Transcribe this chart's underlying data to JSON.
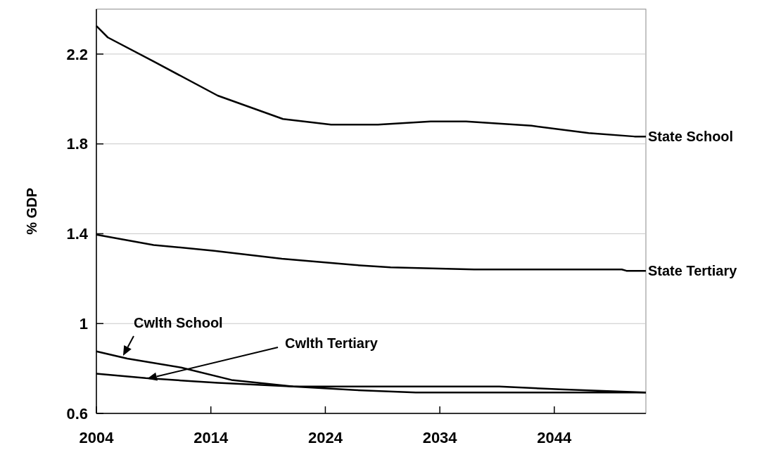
{
  "chart_data": {
    "type": "line",
    "ylabel": "% GDP",
    "xlim": [
      2004,
      2052
    ],
    "ylim": [
      0.6,
      2.4
    ],
    "xticks": [
      2004,
      2014,
      2024,
      2034,
      2044
    ],
    "yticks": [
      0.6,
      1,
      1.4,
      1.8,
      2.2
    ],
    "grid": "y",
    "marker": "none",
    "line_style": "solid",
    "series": [
      {
        "name": "State School",
        "color": "#000000",
        "x": [
          2004,
          2005,
          2009,
          2014.6,
          2020.3,
          2024.5,
          2028.6,
          2033.2,
          2036.3,
          2042,
          2047,
          2051,
          2052
        ],
        "values": [
          2.325,
          2.274,
          2.167,
          2.015,
          1.911,
          1.886,
          1.886,
          1.9,
          1.9,
          1.881,
          1.848,
          1.833,
          1.833
        ]
      },
      {
        "name": "State Tertiary",
        "color": "#000000",
        "x": [
          2004,
          2009,
          2014.3,
          2020.2,
          2026.5,
          2029.7,
          2037,
          2049.9,
          2050.3,
          2052
        ],
        "values": [
          1.396,
          1.35,
          1.324,
          1.289,
          1.261,
          1.25,
          1.241,
          1.241,
          1.235,
          1.235
        ]
      },
      {
        "name": "Cwlth School",
        "color": "#000000",
        "x": [
          2004,
          2006.7,
          2011.4,
          2015.8,
          2021.2,
          2026.6,
          2031.9,
          2052
        ],
        "values": [
          0.876,
          0.844,
          0.804,
          0.749,
          0.72,
          0.704,
          0.693,
          0.693
        ]
      },
      {
        "name": "Cwlth Tertiary",
        "color": "#000000",
        "x": [
          2004,
          2008.3,
          2014.6,
          2021.2,
          2031.3,
          2039.2,
          2044.5,
          2052
        ],
        "values": [
          0.777,
          0.757,
          0.736,
          0.72,
          0.72,
          0.72,
          0.707,
          0.693
        ]
      }
    ]
  }
}
